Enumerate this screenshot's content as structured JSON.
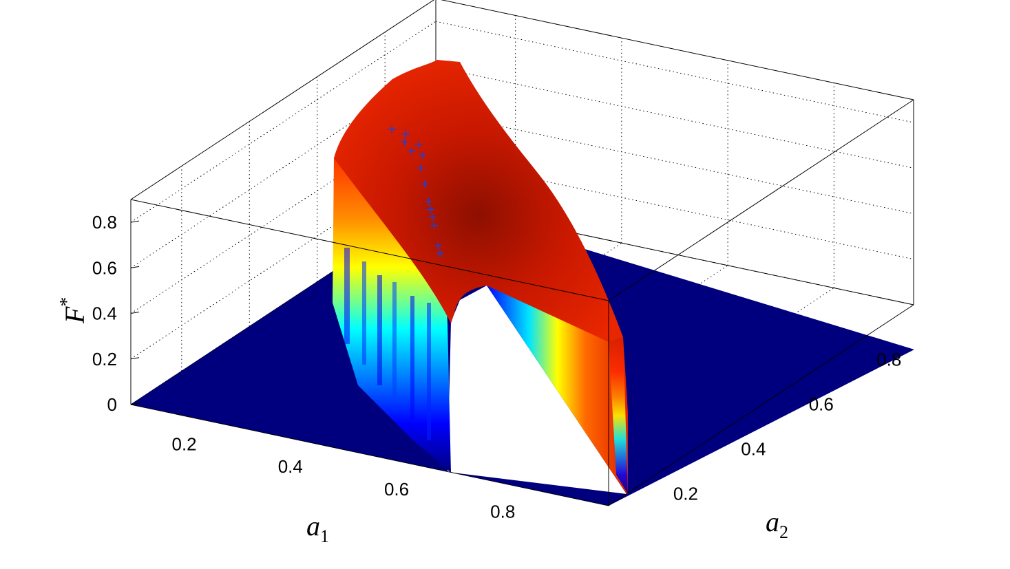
{
  "chart_data": {
    "type": "surface3d",
    "title": "",
    "x_axis": {
      "label": "a",
      "label_subscript": "1",
      "range": [
        0.05,
        0.95
      ],
      "ticks": [
        "0.2",
        "0.4",
        "0.6",
        "0.8"
      ]
    },
    "y_axis": {
      "label": "a",
      "label_subscript": "2",
      "range": [
        0.05,
        0.95
      ],
      "ticks": [
        "0.2",
        "0.4",
        "0.6",
        "0.8"
      ]
    },
    "z_axis": {
      "label": "F",
      "label_superscript": "*",
      "range": [
        0,
        0.9
      ],
      "ticks": [
        "0",
        "0.2",
        "0.4",
        "0.6",
        "0.8"
      ]
    },
    "grid": true,
    "colormap": "jet",
    "surface_description": "Ridge surface F*(a1,a2), non-zero for roughly a1 + a2 < 0.95 and a1 < 0.62; zero elsewhere",
    "surface_samples": {
      "a1": [
        0.05,
        0.15,
        0.25,
        0.35,
        0.45,
        0.55,
        0.6
      ],
      "a2_at_max": [
        0.85,
        0.75,
        0.6,
        0.5,
        0.42,
        0.35,
        0.3
      ],
      "F_max": [
        0.86,
        0.85,
        0.84,
        0.8,
        0.72,
        0.6,
        0.52
      ]
    },
    "markers": {
      "symbol": "+",
      "color": "#1f3fd8",
      "points": [
        {
          "a1": 0.28,
          "a2": 0.46,
          "F": 0.92
        },
        {
          "a1": 0.3,
          "a2": 0.47,
          "F": 0.9
        },
        {
          "a1": 0.31,
          "a2": 0.45,
          "F": 0.89
        },
        {
          "a1": 0.33,
          "a2": 0.46,
          "F": 0.88
        },
        {
          "a1": 0.33,
          "a2": 0.44,
          "F": 0.87
        },
        {
          "a1": 0.35,
          "a2": 0.44,
          "F": 0.86
        },
        {
          "a1": 0.36,
          "a2": 0.42,
          "F": 0.83
        },
        {
          "a1": 0.38,
          "a2": 0.4,
          "F": 0.79
        },
        {
          "a1": 0.4,
          "a2": 0.38,
          "F": 0.74
        },
        {
          "a1": 0.41,
          "a2": 0.37,
          "F": 0.72
        },
        {
          "a1": 0.42,
          "a2": 0.36,
          "F": 0.7
        },
        {
          "a1": 0.43,
          "a2": 0.35,
          "F": 0.68
        },
        {
          "a1": 0.45,
          "a2": 0.33,
          "F": 0.62
        },
        {
          "a1": 0.46,
          "a2": 0.32,
          "F": 0.6
        }
      ]
    }
  }
}
